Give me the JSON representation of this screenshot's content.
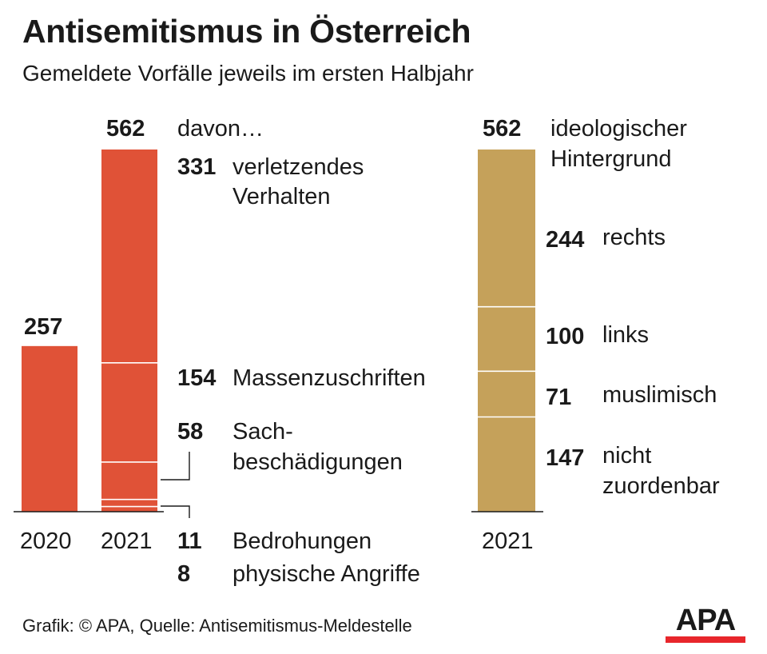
{
  "title": "Antisemitismus in Österreich",
  "subtitle": "Gemeldete Vorfälle jeweils im ersten Halbjahr",
  "colors": {
    "incidents": "#e05237",
    "ideology": "#c5a15a",
    "axis": "#1a1a1a",
    "divider": "#ffffff"
  },
  "chart_data": [
    {
      "type": "bar",
      "categories": [
        "2020",
        "2021"
      ],
      "values": [
        257,
        562
      ],
      "value_labels": [
        "257",
        "562"
      ],
      "breakdown_header": "davon…",
      "breakdown_2021": [
        {
          "value": 331,
          "label": "verletzendes Verhalten",
          "label_lines": [
            "verletzendes",
            "Verhalten"
          ]
        },
        {
          "value": 154,
          "label": "Massenzuschriften",
          "label_lines": [
            "Massenzuschriften"
          ]
        },
        {
          "value": 58,
          "label": "Sachbeschädigungen",
          "label_lines": [
            "Sach-",
            "beschädigungen"
          ]
        },
        {
          "value": 11,
          "label": "Bedrohungen",
          "label_lines": [
            "Bedrohungen"
          ]
        },
        {
          "value": 8,
          "label": "physische Angriffe",
          "label_lines": [
            "physische Angriffe"
          ]
        }
      ]
    },
    {
      "type": "bar",
      "categories": [
        "2021"
      ],
      "values": [
        562
      ],
      "total_label": "562",
      "total_caption_lines": [
        "ideologischer",
        "Hintergrund"
      ],
      "breakdown_2021": [
        {
          "value": 244,
          "label": "rechts"
        },
        {
          "value": 100,
          "label": "links"
        },
        {
          "value": 71,
          "label": "muslimisch"
        },
        {
          "value": 147,
          "label": "nicht zuordenbar",
          "label_lines": [
            "nicht",
            "zuordenbar"
          ]
        }
      ]
    }
  ],
  "labels": {
    "v2020": "257",
    "v2021": "562",
    "year2020": "2020",
    "year2021": "2021",
    "davon": "davon…",
    "n331": "331",
    "l331a": "verletzendes",
    "l331b": "Verhalten",
    "n154": "154",
    "l154": "Massenzuschriften",
    "n58": "58",
    "l58a": "Sach-",
    "l58b": "beschädigungen",
    "n11": "11",
    "l11": "Bedrohungen",
    "n8": "8",
    "l8": "physische Angriffe",
    "r562": "562",
    "rcap1": "ideologischer",
    "rcap2": "Hintergrund",
    "n244": "244",
    "l244": "rechts",
    "n100": "100",
    "l100": "links",
    "n71": "71",
    "l71": "muslimisch",
    "n147": "147",
    "l147a": "nicht",
    "l147b": "zuordenbar",
    "ryear": "2021"
  },
  "footer": "Grafik: © APA, Quelle: Antisemitismus-Meldestelle",
  "logo": "APA"
}
